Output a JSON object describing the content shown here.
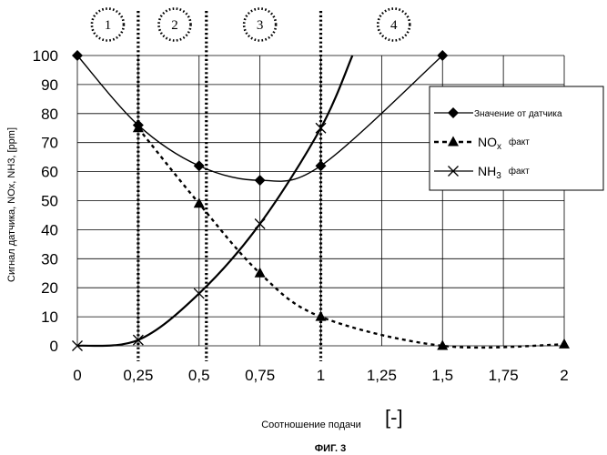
{
  "chart_data": {
    "type": "line",
    "title": "",
    "xlabel": "Соотношение подачи",
    "xunit": "[-]",
    "ylabel": "Сигнал датчика, NOx, NH3, [ppm]",
    "caption": "ФИГ. 3",
    "xlim": [
      0,
      2
    ],
    "ylim": [
      0,
      100
    ],
    "x_ticks": [
      0,
      0.25,
      0.5,
      0.75,
      1,
      1.25,
      1.5,
      1.75,
      2
    ],
    "x_tick_labels": [
      "0",
      "0,25",
      "0,5",
      "0,75",
      "1",
      "1,25",
      "1,5",
      "1,75",
      "2"
    ],
    "y_ticks": [
      0,
      10,
      20,
      30,
      40,
      50,
      60,
      70,
      80,
      90,
      100
    ],
    "y_tick_labels": [
      "0",
      "10",
      "20",
      "30",
      "40",
      "50",
      "60",
      "70",
      "80",
      "90",
      "100"
    ],
    "grid": true,
    "legend_position": "right",
    "zones": [
      {
        "label": "1",
        "center_x": 0.125
      },
      {
        "label": "2",
        "center_x": 0.4
      },
      {
        "label": "3",
        "center_x": 0.75
      },
      {
        "label": "4",
        "center_x": 1.3
      }
    ],
    "zone_boundaries": [
      0.25,
      0.53,
      1.0
    ],
    "series": [
      {
        "name": "Значение от датчика",
        "marker": "diamond",
        "line": "solid",
        "points": [
          [
            0,
            100
          ],
          [
            0.25,
            76
          ],
          [
            0.5,
            62
          ],
          [
            0.75,
            57
          ],
          [
            1,
            62
          ],
          [
            1.5,
            100
          ]
        ]
      },
      {
        "name": "NOx",
        "name_suffix": "факт",
        "marker": "triangle",
        "line": "dashed",
        "points": [
          [
            0.25,
            75
          ],
          [
            0.5,
            49
          ],
          [
            0.75,
            25
          ],
          [
            1,
            10
          ],
          [
            1.5,
            0
          ],
          [
            2,
            0.5
          ]
        ]
      },
      {
        "name": "NH3",
        "name_suffix": "факт",
        "marker": "x",
        "line": "solid",
        "points": [
          [
            0,
            0
          ],
          [
            0.25,
            2
          ],
          [
            0.5,
            18
          ],
          [
            0.75,
            42
          ],
          [
            1,
            75
          ]
        ],
        "curve_extends_to": [
          1.13,
          100
        ]
      }
    ]
  }
}
